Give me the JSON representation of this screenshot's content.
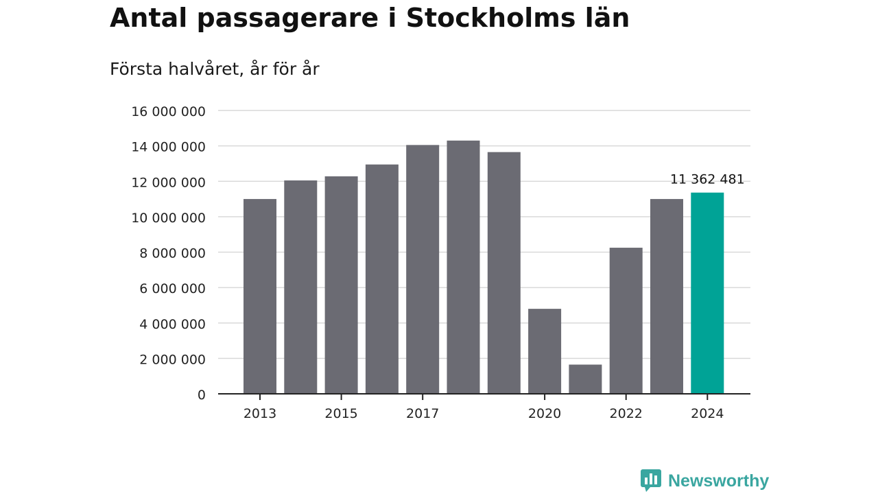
{
  "title": "Antal passagerare i Stockholms län",
  "subtitle": "Första halvåret, år för år",
  "brand": {
    "name": "Newsworthy",
    "icon": "newsworthy-logo-icon"
  },
  "colors": {
    "bar": "#6b6b73",
    "highlight": "#00a396",
    "grid": "#d9d9d9",
    "axis": "#222222",
    "brand": "#3aa6a0"
  },
  "chart_data": {
    "type": "bar",
    "categories": [
      "2013",
      "2014",
      "2015",
      "2016",
      "2017",
      "2018",
      "2019",
      "2020",
      "2021",
      "2022",
      "2023",
      "2024"
    ],
    "values": [
      11000000,
      12050000,
      12280000,
      12950000,
      14050000,
      14300000,
      13650000,
      4800000,
      1650000,
      8250000,
      11000000,
      11362481
    ],
    "highlight_index": 11,
    "data_labels": [
      {
        "index": 11,
        "text": "11 362 481"
      }
    ],
    "x_tick_labels": [
      "2013",
      "2015",
      "2017",
      "2020",
      "2022",
      "2024"
    ],
    "y_ticks": [
      {
        "value": 0,
        "label": "0"
      },
      {
        "value": 2000000,
        "label": "2 000 000"
      },
      {
        "value": 4000000,
        "label": "4 000 000"
      },
      {
        "value": 6000000,
        "label": "6 000 000"
      },
      {
        "value": 8000000,
        "label": "8 000 000"
      },
      {
        "value": 10000000,
        "label": "10 000 000"
      },
      {
        "value": 12000000,
        "label": "12 000 000"
      },
      {
        "value": 14000000,
        "label": "14 000 000"
      },
      {
        "value": 16000000,
        "label": "16 000 000"
      }
    ],
    "ylim": [
      0,
      16000000
    ],
    "grid": true
  }
}
